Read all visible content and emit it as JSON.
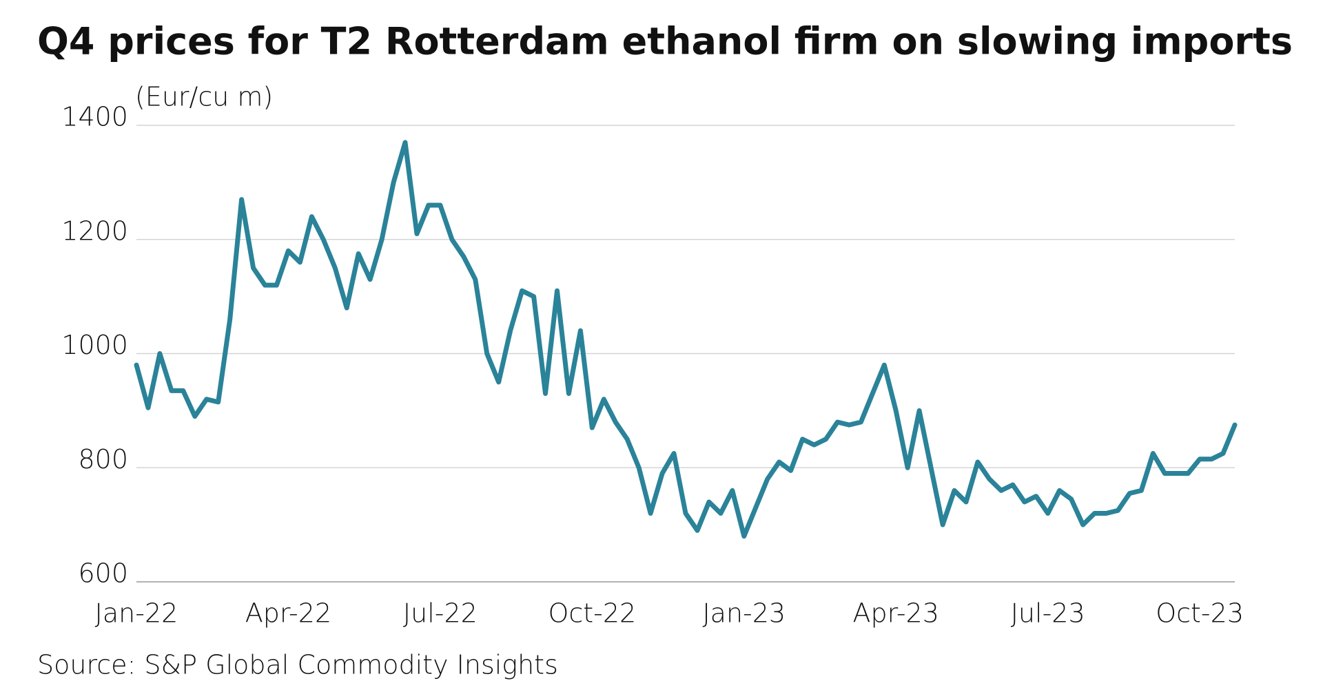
{
  "chart_data": {
    "type": "line",
    "title": "Q4 prices for T2 Rotterdam ethanol firm on slowing imports",
    "y_label": "(Eur/cu m)",
    "source": "Source: S&P Global Commodity Insights",
    "categories": [
      "Jan-22",
      null,
      null,
      null,
      null,
      null,
      null,
      null,
      null,
      null,
      null,
      null,
      null,
      "Apr-22",
      null,
      null,
      null,
      null,
      null,
      null,
      null,
      null,
      null,
      null,
      null,
      null,
      "Jul-22",
      null,
      null,
      null,
      null,
      null,
      null,
      null,
      null,
      null,
      null,
      null,
      null,
      "Oct-22",
      null,
      null,
      null,
      null,
      null,
      null,
      null,
      null,
      null,
      null,
      null,
      null,
      "Jan-23",
      null,
      null,
      null,
      null,
      null,
      null,
      null,
      null,
      null,
      null,
      null,
      null,
      "Apr-23",
      null,
      null,
      null,
      null,
      null,
      null,
      null,
      null,
      null,
      null,
      null,
      null,
      "Jul-23",
      null,
      null,
      null,
      null,
      null,
      null,
      null,
      null,
      null,
      null,
      null,
      null,
      "Oct-23",
      null,
      null,
      null
    ],
    "values": [
      980,
      905,
      1000,
      935,
      935,
      890,
      920,
      915,
      1060,
      1270,
      1150,
      1120,
      1120,
      1180,
      1160,
      1240,
      1200,
      1150,
      1080,
      1175,
      1130,
      1200,
      1300,
      1370,
      1210,
      1260,
      1260,
      1200,
      1170,
      1130,
      1000,
      950,
      1040,
      1110,
      1100,
      930,
      1110,
      930,
      1040,
      870,
      920,
      880,
      850,
      800,
      720,
      790,
      825,
      720,
      690,
      740,
      720,
      760,
      680,
      730,
      780,
      810,
      795,
      850,
      840,
      850,
      880,
      875,
      880,
      930,
      980,
      900,
      800,
      900,
      800,
      700,
      760,
      740,
      810,
      780,
      760,
      770,
      740,
      750,
      720,
      760,
      745,
      700,
      720,
      720,
      725,
      755,
      760,
      825,
      790,
      790,
      790,
      815,
      815,
      825,
      875
    ],
    "color": "#2a8399",
    "ylim": [
      600,
      1400
    ],
    "yticks": [
      600,
      800,
      1000,
      1200,
      1400
    ],
    "grid": true
  }
}
